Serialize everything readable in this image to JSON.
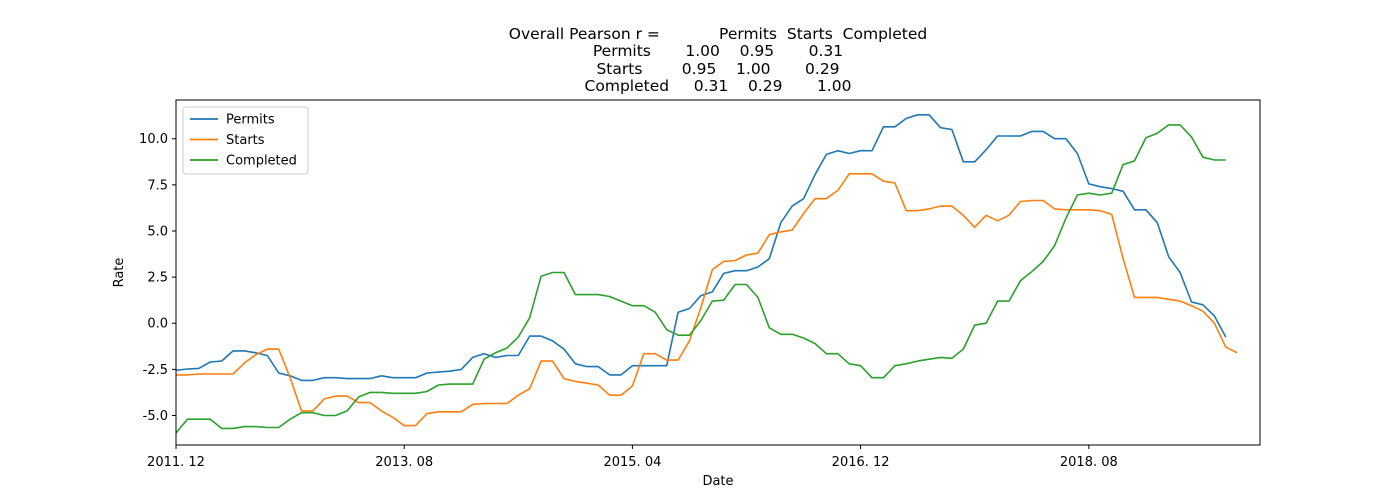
{
  "chart_data": {
    "type": "line",
    "title_lines": [
      "Overall Pearson r =            Permits  Starts  Completed",
      "Permits       1.00    0.95       0.31",
      "Starts        0.95    1.00       0.29",
      "Completed     0.31    0.29       1.00"
    ],
    "xlabel": "Date",
    "ylabel": "Rate",
    "x_ticks": [
      "2011. 12",
      "2013. 08",
      "2015. 04",
      "2016. 12",
      "2018. 08"
    ],
    "y_ticks": [
      "-5.0",
      "-2.5",
      "0.0",
      "2.5",
      "5.0",
      "7.5",
      "10.0"
    ],
    "y_tick_values": [
      -5.0,
      -2.5,
      0.0,
      2.5,
      5.0,
      7.5,
      10.0
    ],
    "ylim": [
      -6.6,
      12.1
    ],
    "xlim_months": [
      0,
      95
    ],
    "x_start": "2011-12",
    "grid": false,
    "legend_position": "upper-left",
    "series": [
      {
        "name": "Permits",
        "color": "#1f77b4",
        "values": [
          -2.55,
          -2.48,
          -2.45,
          -2.1,
          -2.05,
          -1.5,
          -1.5,
          -1.6,
          -1.75,
          -2.7,
          -2.85,
          -3.1,
          -3.1,
          -2.95,
          -2.95,
          -3.0,
          -3.0,
          -3.0,
          -2.85,
          -2.95,
          -2.95,
          -2.95,
          -2.7,
          -2.65,
          -2.6,
          -2.5,
          -1.85,
          -1.65,
          -1.85,
          -1.75,
          -1.75,
          -0.7,
          -0.7,
          -0.95,
          -1.4,
          -2.2,
          -2.35,
          -2.35,
          -2.8,
          -2.8,
          -2.3,
          -2.3,
          -2.3,
          -2.3,
          0.6,
          0.8,
          1.5,
          1.7,
          2.7,
          2.85,
          2.85,
          3.05,
          3.5,
          5.45,
          6.35,
          6.75,
          8.05,
          9.15,
          9.35,
          9.2,
          9.35,
          9.35,
          10.65,
          10.65,
          11.1,
          11.3,
          11.3,
          10.6,
          10.5,
          8.75,
          8.75,
          9.4,
          10.15,
          10.15,
          10.15,
          10.4,
          10.4,
          10.0,
          10.0,
          9.2,
          7.55,
          7.4,
          7.3,
          7.15,
          6.15,
          6.15,
          5.45,
          3.6,
          2.75,
          1.15,
          1.0,
          0.4,
          -0.75
        ]
      },
      {
        "name": "Starts",
        "color": "#ff7f0e",
        "values": [
          -2.8,
          -2.8,
          -2.75,
          -2.75,
          -2.75,
          -2.75,
          -2.15,
          -1.7,
          -1.4,
          -1.4,
          -2.95,
          -4.75,
          -4.75,
          -4.1,
          -3.95,
          -3.95,
          -4.3,
          -4.3,
          -4.75,
          -5.1,
          -5.55,
          -5.55,
          -4.9,
          -4.8,
          -4.8,
          -4.8,
          -4.4,
          -4.35,
          -4.35,
          -4.35,
          -3.9,
          -3.55,
          -2.05,
          -2.05,
          -3.0,
          -3.15,
          -3.25,
          -3.35,
          -3.9,
          -3.9,
          -3.4,
          -1.65,
          -1.65,
          -2.0,
          -2.0,
          -0.95,
          0.85,
          2.9,
          3.35,
          3.4,
          3.7,
          3.8,
          4.8,
          4.95,
          5.05,
          5.95,
          6.75,
          6.75,
          7.2,
          8.1,
          8.1,
          8.1,
          7.7,
          7.6,
          6.1,
          6.1,
          6.2,
          6.35,
          6.35,
          5.85,
          5.2,
          5.85,
          5.55,
          5.85,
          6.6,
          6.65,
          6.65,
          6.2,
          6.15,
          6.15,
          6.15,
          6.1,
          5.9,
          3.5,
          1.4,
          1.4,
          1.4,
          1.3,
          1.2,
          0.95,
          0.65,
          0.0,
          -1.3,
          -1.6
        ]
      },
      {
        "name": "Completed",
        "color": "#2ca02c",
        "values": [
          -5.95,
          -5.2,
          -5.2,
          -5.2,
          -5.7,
          -5.7,
          -5.6,
          -5.6,
          -5.65,
          -5.65,
          -5.2,
          -4.85,
          -4.85,
          -5.0,
          -5.0,
          -4.75,
          -4.0,
          -3.75,
          -3.75,
          -3.8,
          -3.8,
          -3.8,
          -3.7,
          -3.35,
          -3.3,
          -3.3,
          -3.3,
          -1.95,
          -1.6,
          -1.35,
          -0.75,
          0.3,
          2.55,
          2.75,
          2.75,
          1.55,
          1.55,
          1.55,
          1.45,
          1.2,
          0.95,
          0.95,
          0.6,
          -0.35,
          -0.65,
          -0.65,
          0.15,
          1.2,
          1.25,
          2.1,
          2.1,
          1.4,
          -0.25,
          -0.6,
          -0.6,
          -0.8,
          -1.1,
          -1.65,
          -1.65,
          -2.2,
          -2.3,
          -2.95,
          -2.95,
          -2.3,
          -2.2,
          -2.05,
          -1.95,
          -1.85,
          -1.9,
          -1.4,
          -0.1,
          0.0,
          1.2,
          1.2,
          2.3,
          2.8,
          3.35,
          4.2,
          5.7,
          6.95,
          7.05,
          6.95,
          7.05,
          8.6,
          8.8,
          10.05,
          10.3,
          10.75,
          10.75,
          10.1,
          9.0,
          8.85,
          8.85
        ]
      }
    ]
  }
}
